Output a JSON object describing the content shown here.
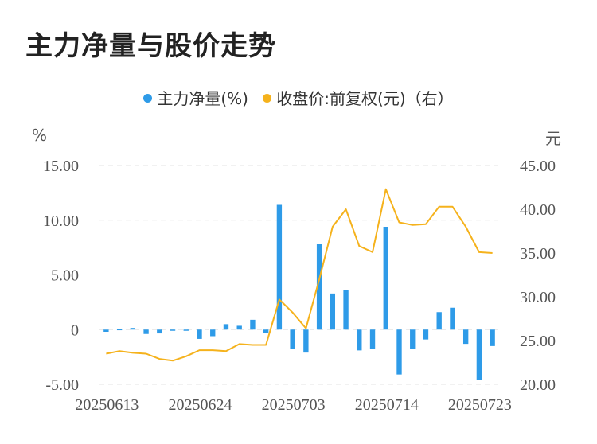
{
  "title": "主力净量与股价走势",
  "legend": {
    "series1": "主力净量(%)",
    "series2": "收盘价:前复权(元)（右）"
  },
  "axis_units": {
    "left": "%",
    "right": "元"
  },
  "colors": {
    "bar": "#2e9be8",
    "line": "#f5b21c",
    "grid": "#e3e3e3",
    "axis_text": "#555555",
    "title": "#222222"
  },
  "chart_data": {
    "type": "bar+line",
    "x_tick_labels": [
      "20250613",
      "20250624",
      "20250703",
      "20250714",
      "20250723"
    ],
    "x_tick_indices": [
      0,
      7,
      14,
      21,
      28
    ],
    "left_axis": {
      "min": -5,
      "max": 15,
      "ticks": [
        "-5.00",
        "0",
        "5.00",
        "10.00",
        "15.00"
      ]
    },
    "right_axis": {
      "min": 20,
      "max": 45,
      "ticks": [
        "20.00",
        "25.00",
        "30.00",
        "35.00",
        "40.00",
        "45.00"
      ]
    },
    "grid": true,
    "series": [
      {
        "name": "主力净量(%)",
        "type": "bar",
        "axis": "left",
        "values": [
          -0.2,
          0.05,
          0.15,
          -0.4,
          -0.35,
          -0.05,
          -0.1,
          -0.85,
          -0.6,
          0.5,
          0.35,
          0.9,
          -0.3,
          11.4,
          -1.8,
          -2.1,
          7.8,
          3.3,
          3.6,
          -1.9,
          -1.8,
          9.4,
          -4.1,
          -1.8,
          -0.9,
          1.6,
          2.0,
          -1.3,
          -4.6,
          -1.5
        ]
      },
      {
        "name": "收盘价:前复权(元)（右）",
        "type": "line",
        "axis": "right",
        "values": [
          23.5,
          23.8,
          23.6,
          23.5,
          22.9,
          22.7,
          23.2,
          23.9,
          23.9,
          23.8,
          24.6,
          24.5,
          24.5,
          29.7,
          28.2,
          26.4,
          32.0,
          38.0,
          40.0,
          35.8,
          35.1,
          42.3,
          38.5,
          38.2,
          38.3,
          40.3,
          40.3,
          38.0,
          35.1,
          35.0
        ]
      }
    ]
  }
}
